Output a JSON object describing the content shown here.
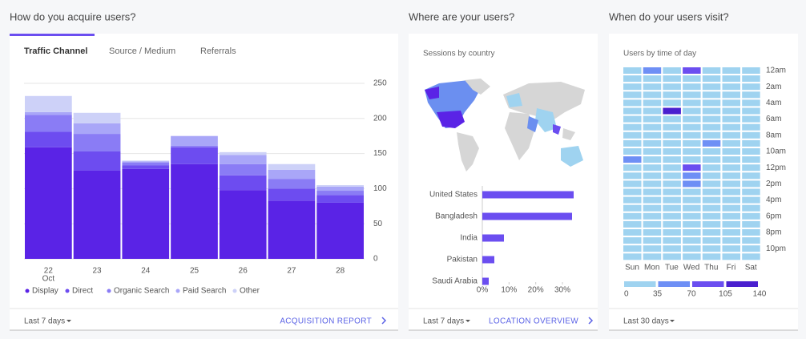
{
  "sections": [
    {
      "heading": "How do you acquire users?"
    },
    {
      "heading": "Where are your users?"
    },
    {
      "heading": "When do your users visit?"
    }
  ],
  "tabs": [
    "Traffic Channel",
    "Source / Medium",
    "Referrals"
  ],
  "footers": [
    {
      "range": "Last 7 days",
      "link": "ACQUISITION REPORT"
    },
    {
      "range": "Last 7 days",
      "link": "LOCATION OVERVIEW"
    },
    {
      "range": "Last 30 days"
    }
  ],
  "chart_data": [
    {
      "type": "stacked_bar",
      "categories": [
        "22",
        "23",
        "24",
        "25",
        "26",
        "27",
        "28"
      ],
      "x_month_label": "Oct",
      "series": [
        {
          "name": "Display",
          "color": "#5a23e6",
          "values": [
            159,
            126,
            128,
            135,
            98,
            83,
            80
          ]
        },
        {
          "name": "Direct",
          "color": "#6d4cf0",
          "values": [
            22,
            27,
            5,
            24,
            21,
            17,
            11
          ]
        },
        {
          "name": "Organic Search",
          "color": "#8a7cf5",
          "values": [
            24,
            25,
            4,
            2,
            16,
            14,
            6
          ]
        },
        {
          "name": "Paid Search",
          "color": "#a9a6f8",
          "values": [
            4,
            15,
            2,
            14,
            13,
            13,
            6
          ]
        },
        {
          "name": "Other",
          "color": "#cdd1f8",
          "values": [
            23,
            15,
            1,
            0,
            4,
            8,
            2
          ]
        }
      ],
      "ylim": [
        0,
        250
      ],
      "yticks": [
        0,
        50,
        100,
        150,
        200,
        250
      ],
      "grid": true
    },
    {
      "type": "hbar",
      "title": "Sessions by country",
      "categories": [
        "United States",
        "Bangladesh",
        "India",
        "Pakistan",
        "Saudi Arabia"
      ],
      "values": [
        34.2,
        33.6,
        8.1,
        4.5,
        2.4
      ],
      "color": "#6b4ef0",
      "xlim": [
        0,
        35
      ],
      "xticks": [
        {
          "value": 0,
          "label": "0%"
        },
        {
          "value": 10,
          "label": "10%"
        },
        {
          "value": 20,
          "label": "20%"
        },
        {
          "value": 30,
          "label": "30%"
        }
      ]
    },
    {
      "type": "heatmap",
      "title": "Users by time of day",
      "x": [
        "Sun",
        "Mon",
        "Tue",
        "Wed",
        "Thu",
        "Fri",
        "Sat"
      ],
      "y_labels": [
        "12am",
        "2am",
        "4am",
        "6am",
        "8am",
        "10am",
        "12pm",
        "2pm",
        "4pm",
        "6pm",
        "8pm",
        "10pm"
      ],
      "values": [
        [
          22,
          50,
          25,
          90,
          24,
          20,
          18
        ],
        [
          18,
          20,
          22,
          24,
          21,
          19,
          17
        ],
        [
          16,
          18,
          20,
          19,
          22,
          17,
          15
        ],
        [
          14,
          16,
          18,
          17,
          19,
          15,
          13
        ],
        [
          12,
          15,
          17,
          16,
          18,
          14,
          12
        ],
        [
          13,
          17,
          120,
          18,
          19,
          15,
          12
        ],
        [
          15,
          20,
          24,
          22,
          21,
          18,
          14
        ],
        [
          18,
          24,
          27,
          26,
          25,
          21,
          16
        ],
        [
          21,
          28,
          30,
          29,
          28,
          24,
          19
        ],
        [
          24,
          30,
          32,
          31,
          50,
          27,
          22
        ],
        [
          26,
          31,
          33,
          32,
          31,
          28,
          24
        ],
        [
          50,
          32,
          34,
          33,
          32,
          29,
          25
        ],
        [
          27,
          33,
          34,
          80,
          33,
          30,
          26
        ],
        [
          26,
          32,
          33,
          60,
          32,
          29,
          25
        ],
        [
          25,
          31,
          32,
          60,
          31,
          28,
          24
        ],
        [
          24,
          30,
          31,
          30,
          30,
          27,
          23
        ],
        [
          23,
          29,
          30,
          29,
          29,
          26,
          22
        ],
        [
          22,
          28,
          29,
          28,
          28,
          25,
          21
        ],
        [
          23,
          28,
          29,
          28,
          27,
          25,
          22
        ],
        [
          24,
          29,
          30,
          29,
          28,
          26,
          23
        ],
        [
          25,
          30,
          31,
          30,
          29,
          27,
          24
        ],
        [
          26,
          31,
          32,
          31,
          30,
          28,
          25
        ],
        [
          25,
          29,
          30,
          29,
          28,
          26,
          24
        ],
        [
          23,
          26,
          27,
          26,
          25,
          24,
          22
        ]
      ],
      "scale_ticks": [
        0,
        35,
        70,
        105,
        140
      ],
      "scale_colors": [
        "#9fd3f0",
        "#6e8ff5",
        "#6b4ef0",
        "#4a1fcf"
      ]
    }
  ]
}
